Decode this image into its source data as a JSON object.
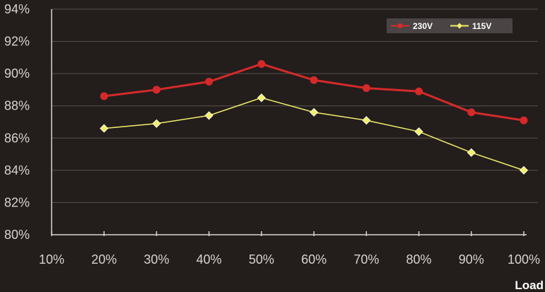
{
  "chart_data": {
    "type": "line",
    "x": [
      "10%",
      "20%",
      "30%",
      "40%",
      "50%",
      "60%",
      "70%",
      "80%",
      "90%",
      "100%"
    ],
    "y_ticks": [
      "80%",
      "82%",
      "84%",
      "86%",
      "88%",
      "90%",
      "92%",
      "94%"
    ],
    "ylim": [
      80,
      94
    ],
    "xlabel": "Load",
    "ylabel": "",
    "title": "",
    "grid": true,
    "legend_position": "top-right",
    "series": [
      {
        "name": "230V",
        "color": "#d42a2a",
        "marker": "circle",
        "points": [
          {
            "x": "20%",
            "y": 88.6
          },
          {
            "x": "30%",
            "y": 89.0
          },
          {
            "x": "40%",
            "y": 89.5
          },
          {
            "x": "50%",
            "y": 90.6
          },
          {
            "x": "60%",
            "y": 89.6
          },
          {
            "x": "70%",
            "y": 89.1
          },
          {
            "x": "80%",
            "y": 88.9
          },
          {
            "x": "90%",
            "y": 87.6
          },
          {
            "x": "100%",
            "y": 87.1
          }
        ]
      },
      {
        "name": "115V",
        "color": "#f2ee6a",
        "marker": "diamond",
        "points": [
          {
            "x": "20%",
            "y": 86.6
          },
          {
            "x": "30%",
            "y": 86.9
          },
          {
            "x": "40%",
            "y": 87.4
          },
          {
            "x": "50%",
            "y": 88.5
          },
          {
            "x": "60%",
            "y": 87.6
          },
          {
            "x": "70%",
            "y": 87.1
          },
          {
            "x": "80%",
            "y": 86.4
          },
          {
            "x": "90%",
            "y": 85.1
          },
          {
            "x": "100%",
            "y": 84.0
          }
        ]
      }
    ]
  }
}
